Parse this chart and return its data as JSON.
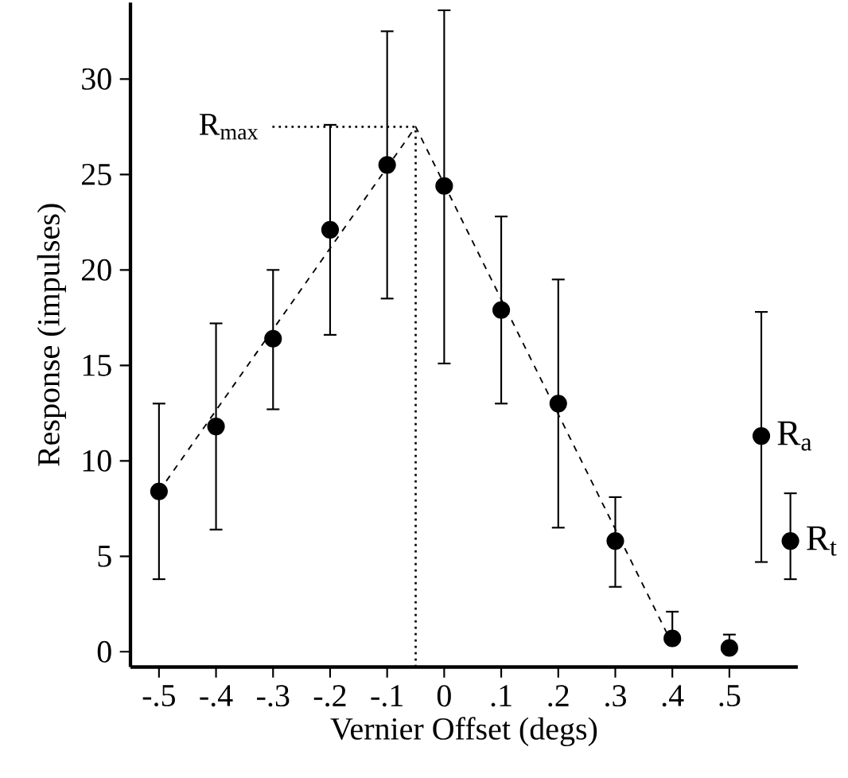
{
  "chart_data": {
    "type": "scatter",
    "xlabel": "Vernier Offset (degs)",
    "ylabel": "Response (impulses)",
    "xlim": [
      -0.55,
      0.62
    ],
    "ylim": [
      -0.8,
      34
    ],
    "xticks": [
      {
        "value": -0.5,
        "label": "-.5"
      },
      {
        "value": -0.4,
        "label": "-.4"
      },
      {
        "value": -0.3,
        "label": "-.3"
      },
      {
        "value": -0.2,
        "label": "-.2"
      },
      {
        "value": -0.1,
        "label": "-.1"
      },
      0,
      {
        "value": 0.1,
        "label": ".1"
      },
      {
        "value": 0.2,
        "label": ".2"
      },
      {
        "value": 0.3,
        "label": ".3"
      },
      {
        "value": 0.4,
        "label": ".4"
      },
      {
        "value": 0.5,
        "label": ".5"
      }
    ],
    "yticks": [
      0,
      5,
      10,
      15,
      20,
      25,
      30
    ],
    "ref_lines": [
      {
        "axis": "x",
        "value": -0.05,
        "line_style": "dotted"
      },
      {
        "axis": "y",
        "value": 27.5,
        "label": "R$_{max}$",
        "line_style": "dotted"
      }
    ],
    "series": [
      {
        "marker": "circle",
        "color": "#000000",
        "x": [
          -0.5,
          -0.4,
          -0.3,
          -0.2,
          -0.1,
          0,
          0.1,
          0.2,
          0.3,
          0.4,
          0.5
        ],
        "values": [
          8.4,
          11.8,
          16.4,
          22.1,
          25.5,
          24.4,
          17.9,
          13.0,
          5.8,
          0.7,
          0.2
        ],
        "errors": [
          [
            3.8,
            13.0
          ],
          [
            6.4,
            17.2
          ],
          [
            12.7,
            20.0
          ],
          [
            16.6,
            27.6
          ],
          [
            18.5,
            32.5
          ],
          [
            15.1,
            33.6
          ],
          [
            13.0,
            22.8
          ],
          [
            6.5,
            19.5
          ],
          [
            3.4,
            8.1
          ],
          [
            0.7,
            2.1
          ],
          [
            0.2,
            0.9
          ]
        ]
      },
      {
        "name": "R$_{a}$",
        "marker": "circle",
        "color": "#000000",
        "x": [
          0.556
        ],
        "values": [
          11.3
        ],
        "errors": [
          [
            4.7,
            17.8
          ]
        ]
      },
      {
        "name": "R$_{t}$",
        "marker": "circle",
        "color": "#000000",
        "x": [
          0.607
        ],
        "values": [
          5.8
        ],
        "errors": [
          [
            3.8,
            8.3
          ]
        ]
      },
      {
        "type": "line",
        "line_style": "dashed",
        "marker": "none",
        "color": "#000000",
        "x": [
          -0.5,
          -0.05,
          0.39
        ],
        "values": [
          8.4,
          27.5,
          1.0
        ]
      }
    ]
  }
}
